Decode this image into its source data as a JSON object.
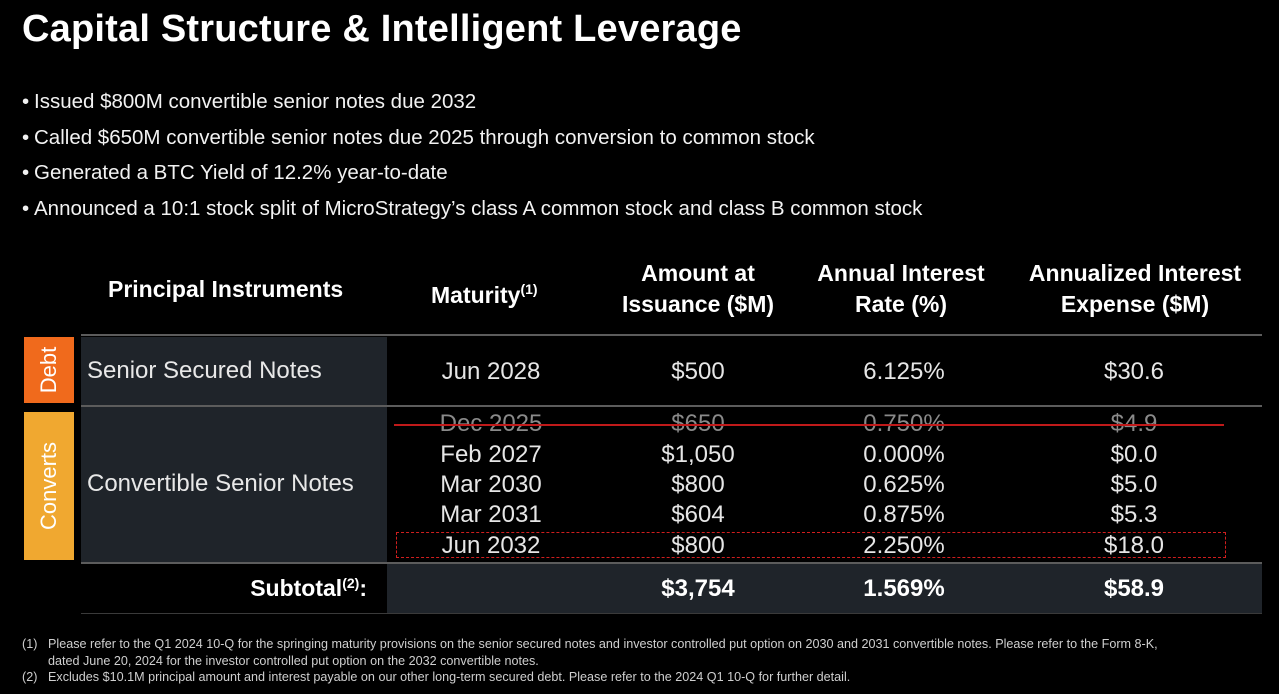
{
  "title": "Capital Structure & Intelligent Leverage",
  "bullets": [
    "Issued $800M convertible senior notes due 2032",
    "Called $650M convertible senior notes due 2025 through conversion to common stock",
    "Generated a BTC Yield of 12.2% year-to-date",
    "Announced a 10:1 stock split of MicroStrategy’s class A common stock and class B common stock"
  ],
  "bullet_symbol": "•",
  "table": {
    "headers": {
      "instruments": "Principal Instruments",
      "maturity": "Maturity",
      "maturity_sup": "(1)",
      "amount_line1": "Amount at",
      "amount_line2": "Issuance ($M)",
      "rate_line1": "Annual Interest",
      "rate_line2": "Rate (%)",
      "expense_line1": "Annualized Interest",
      "expense_line2": "Expense ($M)"
    },
    "tags": {
      "debt": "Debt",
      "converts": "Converts"
    },
    "debt": {
      "label": "Senior Secured Notes",
      "maturity": "Jun 2028",
      "amount": "$500",
      "rate": "6.125%",
      "expense": "$30.6"
    },
    "converts": {
      "label": "Convertible Senior Notes",
      "rows": [
        {
          "maturity": "Dec 2025",
          "amount": "$650",
          "rate": "0.750%",
          "expense": "$4.9",
          "struck": true
        },
        {
          "maturity": "Feb 2027",
          "amount": "$1,050",
          "rate": "0.000%",
          "expense": "$0.0"
        },
        {
          "maturity": "Mar 2030",
          "amount": "$800",
          "rate": "0.625%",
          "expense": "$5.0"
        },
        {
          "maturity": "Mar 2031",
          "amount": "$604",
          "rate": "0.875%",
          "expense": "$5.3"
        },
        {
          "maturity": "Jun 2032",
          "amount": "$800",
          "rate": "2.250%",
          "expense": "$18.0",
          "highlighted": true
        }
      ]
    },
    "subtotal": {
      "label": "Subtotal",
      "sup": "(2)",
      "colon": ":",
      "amount": "$3,754",
      "rate": "1.569%",
      "expense": "$58.9"
    }
  },
  "footnotes": [
    {
      "num": "(1)",
      "line1": "Please refer to the Q1 2024 10-Q for the springing maturity provisions on the senior secured notes and investor controlled put option on 2030 and 2031 convertible notes. Please refer to the Form 8-K,",
      "line2": "dated June 20, 2024 for the investor controlled put option on the 2032 convertible notes."
    },
    {
      "num": "(2)",
      "line1": "Excludes $10.1M principal amount and interest payable on our other long-term secured debt. Please refer to the 2024 Q1 10-Q for further detail."
    }
  ],
  "colors": {
    "debt_tag": "#f06a1c",
    "converts_tag": "#f0a830",
    "strike_line": "#c01a1a",
    "highlight_border": "#d01e1e",
    "panel": "#1f242a"
  }
}
